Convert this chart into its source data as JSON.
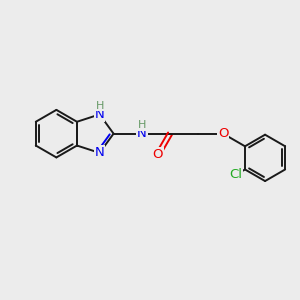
{
  "background_color": "#ececec",
  "bond_color": "#1a1a1a",
  "bond_width": 1.4,
  "atom_colors": {
    "N": "#0000ee",
    "O": "#ee0000",
    "Cl": "#22aa22",
    "H": "#669966"
  },
  "font_size": 9.5,
  "font_size_h": 8.0,
  "xlim": [
    0,
    10
  ],
  "ylim": [
    0,
    10
  ]
}
